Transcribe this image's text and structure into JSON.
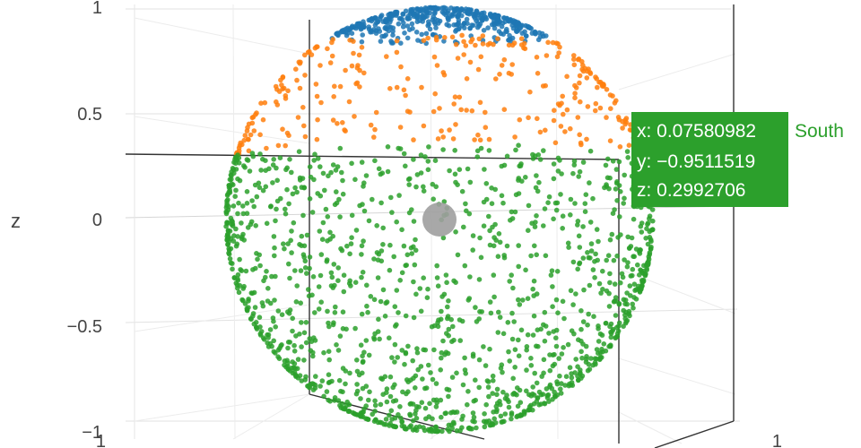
{
  "chart_data": {
    "type": "scatter3d",
    "title": "",
    "zlabel": "z",
    "zlim": [
      -1,
      1
    ],
    "z_ticks": [
      "1",
      "0.5",
      "0",
      "−0.5",
      "−1"
    ],
    "corner_ticks": [
      "1",
      "1"
    ],
    "grid": true,
    "legend": "none",
    "center_marker": {
      "x": 0,
      "y": 0,
      "z": 0,
      "color": "#9e9e9e"
    },
    "series": [
      {
        "name": "",
        "color": "#1f77b4",
        "region": "polar cap",
        "z_min": 0.86,
        "z_max": 1.0
      },
      {
        "name": "",
        "color": "#ff7f0e",
        "region": "upper band",
        "z_min": 0.3,
        "z_max": 0.84
      },
      {
        "name": "South",
        "color": "#2ca02c",
        "region": "lower hemisphere",
        "z_min": -1.0,
        "z_max": 0.3
      }
    ],
    "hover": {
      "series": "South",
      "color": "#2ca02c",
      "x_text": "x: 0.07580982",
      "y_text": "y: −0.9511519",
      "z_text": "z: 0.2992706",
      "name_text": "South"
    }
  }
}
